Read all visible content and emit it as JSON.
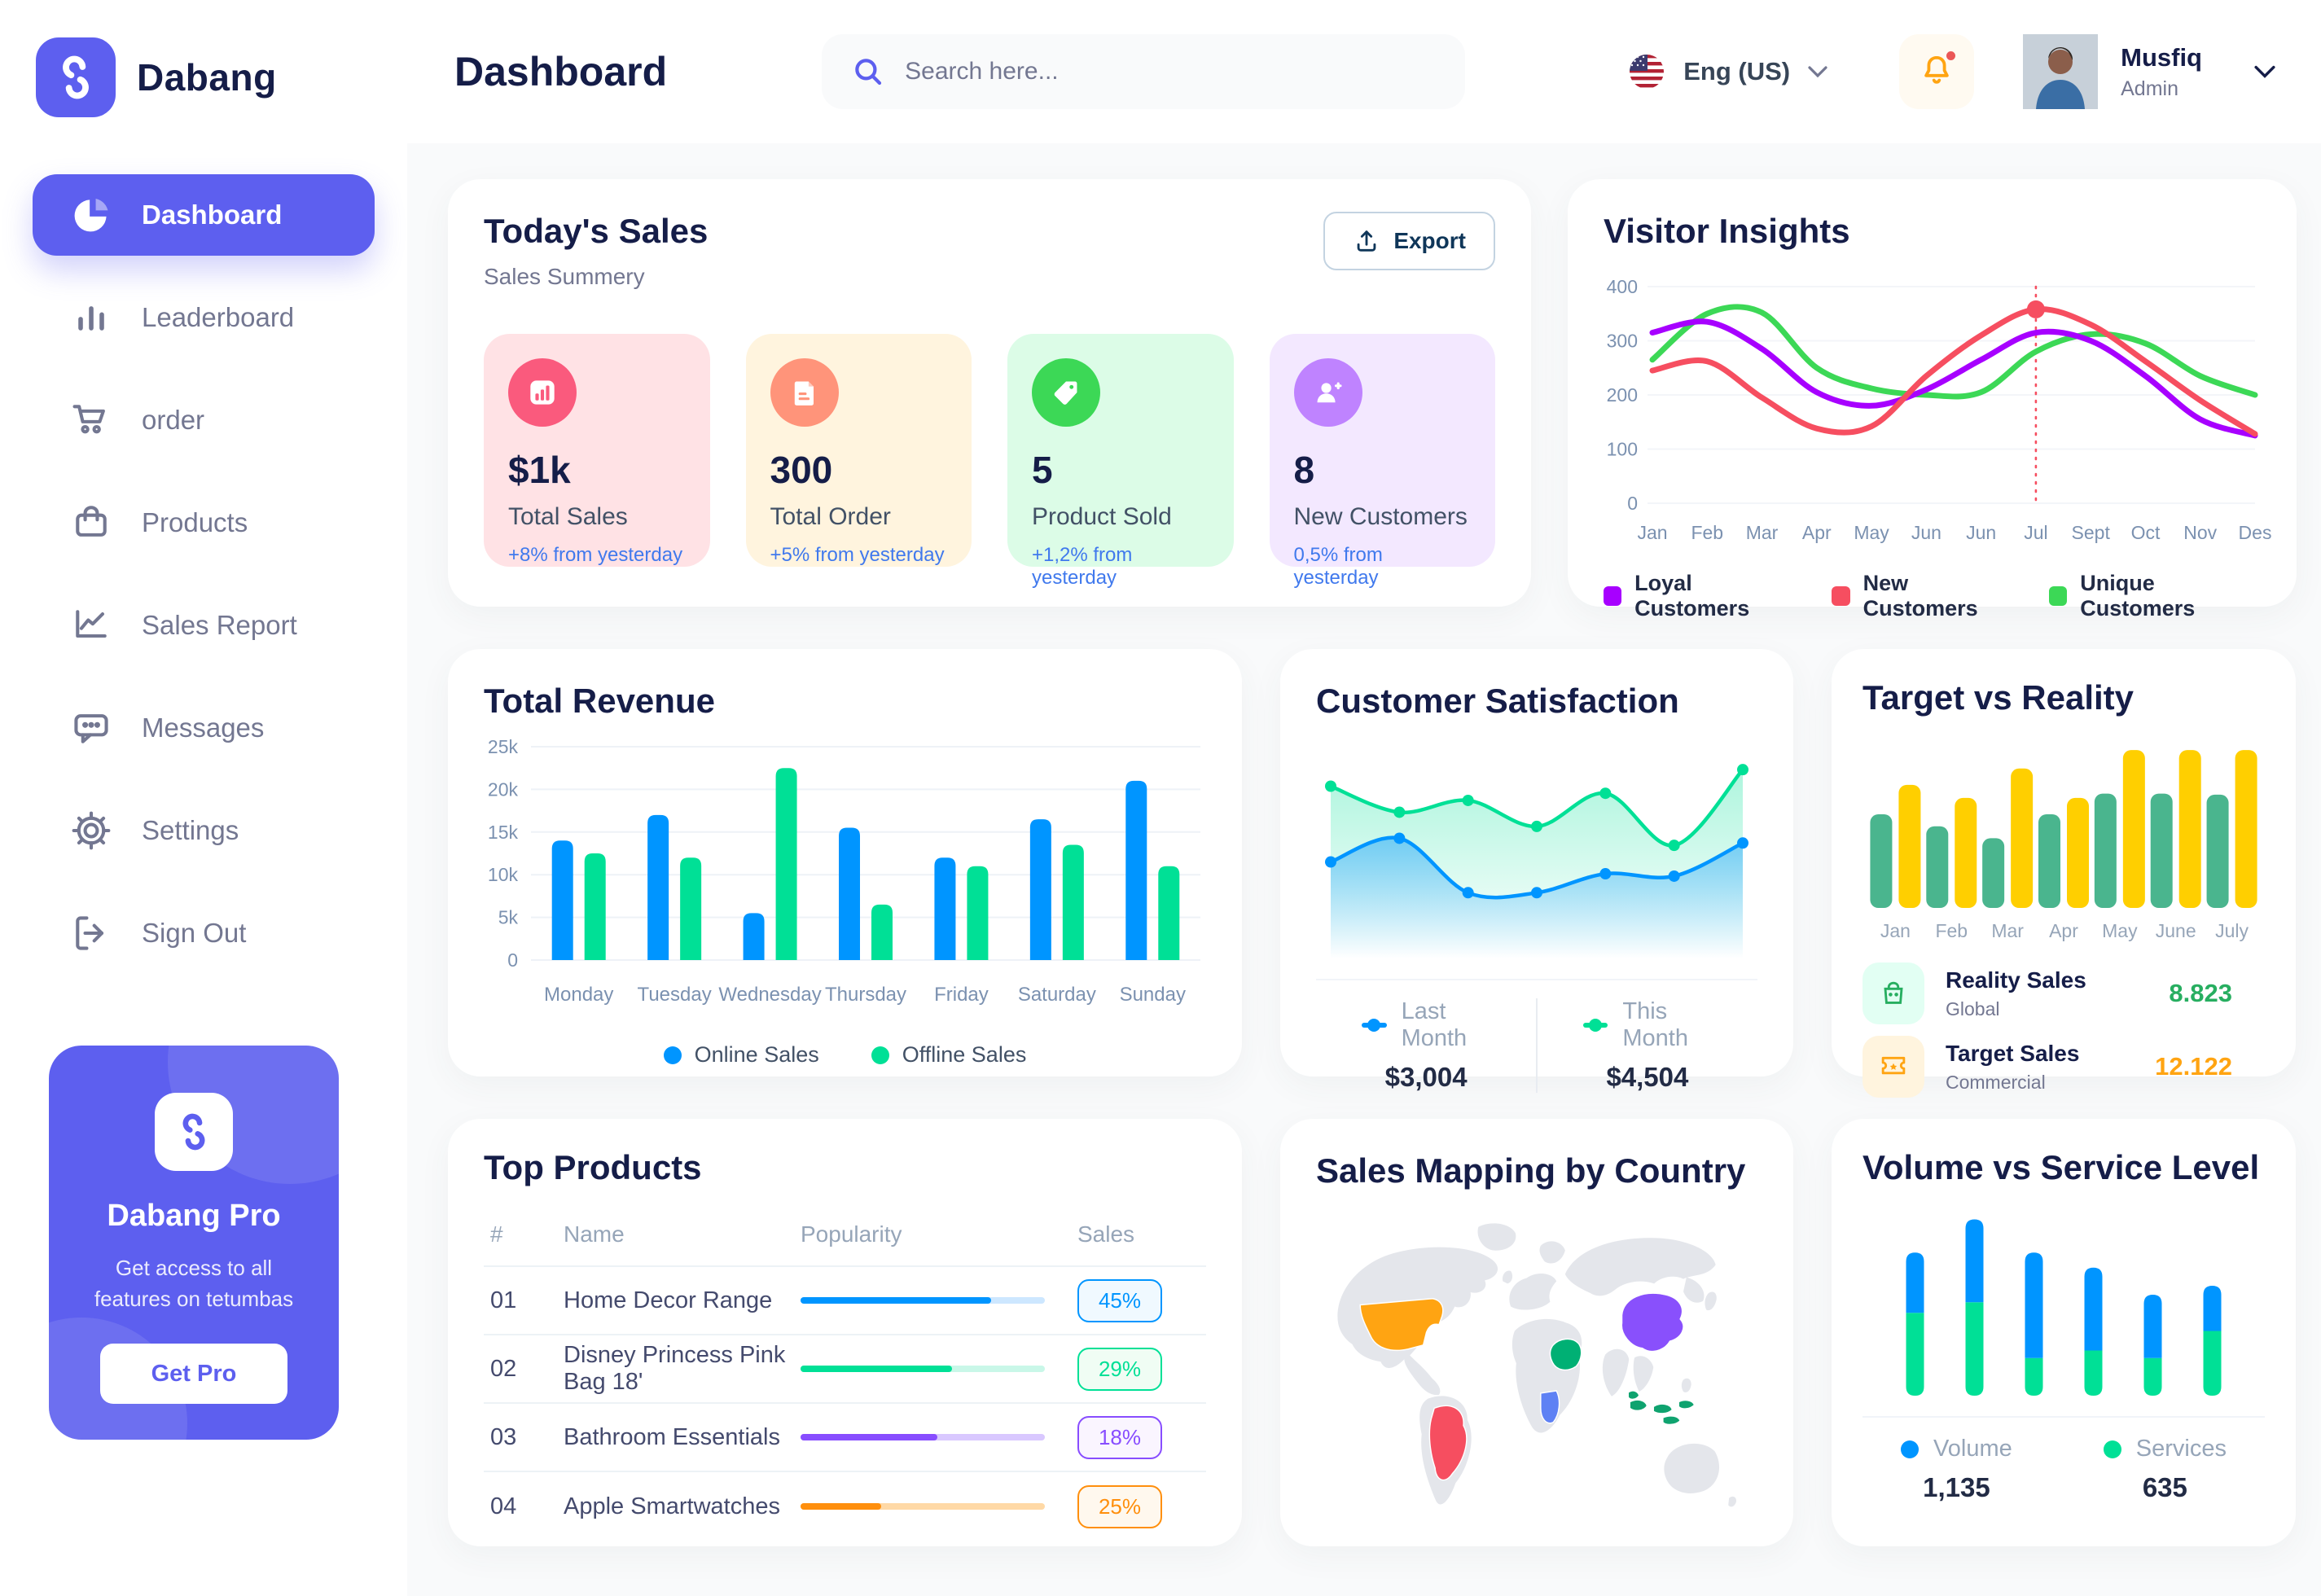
{
  "app": {
    "brand": "Dabang"
  },
  "header": {
    "page_title": "Dashboard",
    "search_placeholder": "Search here...",
    "language": "Eng (US)",
    "user_name": "Musfiq",
    "user_role": "Admin"
  },
  "sidebar": {
    "items": [
      {
        "label": "Dashboard"
      },
      {
        "label": "Leaderboard"
      },
      {
        "label": "order"
      },
      {
        "label": "Products"
      },
      {
        "label": "Sales Report"
      },
      {
        "label": "Messages"
      },
      {
        "label": "Settings"
      },
      {
        "label": "Sign Out"
      }
    ],
    "promo": {
      "title": "Dabang Pro",
      "description": "Get access to all features on tetumbas",
      "button_label": "Get Pro"
    }
  },
  "today_sales": {
    "title": "Today's Sales",
    "subtitle": "Sales Summery",
    "export_label": "Export",
    "cards": [
      {
        "value": "$1k",
        "label": "Total Sales",
        "delta": "+8% from yesterday",
        "bg": "#FFE2E5",
        "icon_bg": "#FA5A7D"
      },
      {
        "value": "300",
        "label": "Total Order",
        "delta": "+5% from yesterday",
        "bg": "#FFF4DE",
        "icon_bg": "#FF947A"
      },
      {
        "value": "5",
        "label": "Product Sold",
        "delta": "+1,2% from yesterday",
        "bg": "#DCFCE7",
        "icon_bg": "#3CD856"
      },
      {
        "value": "8",
        "label": "New Customers",
        "delta": "0,5% from yesterday",
        "bg": "#F3E8FF",
        "icon_bg": "#BF83FF"
      }
    ]
  },
  "visitor_insights": {
    "title": "Visitor Insights",
    "chart_data": {
      "type": "line",
      "x": [
        "Jan",
        "Feb",
        "Mar",
        "Apr",
        "May",
        "Jun",
        "Jun",
        "Jul",
        "Sept",
        "Oct",
        "Nov",
        "Des"
      ],
      "yticks": [
        0,
        100,
        200,
        300,
        400
      ],
      "ylim": [
        0,
        400
      ],
      "grid": true,
      "legend_position": "bottom",
      "series": [
        {
          "name": "Loyal Customers",
          "color": "#A700FF",
          "values": [
            315,
            335,
            285,
            205,
            180,
            210,
            265,
            315,
            300,
            235,
            155,
            125
          ]
        },
        {
          "name": "New Customers",
          "color": "#F64E60",
          "values": [
            245,
            262,
            195,
            138,
            142,
            235,
            310,
            358,
            330,
            262,
            190,
            128
          ]
        },
        {
          "name": "Unique Customers",
          "color": "#3CD856",
          "values": [
            265,
            350,
            352,
            250,
            212,
            200,
            205,
            280,
            312,
            295,
            235,
            200
          ]
        }
      ],
      "marker": {
        "x_index": 7,
        "series_index": 1,
        "value": 358
      }
    }
  },
  "total_revenue": {
    "title": "Total Revenue",
    "chart_data": {
      "type": "bar",
      "categories": [
        "Monday",
        "Tuesday",
        "Wednesday",
        "Thursday",
        "Friday",
        "Saturday",
        "Sunday"
      ],
      "ytick_labels": [
        "0",
        "5k",
        "10k",
        "15k",
        "20k",
        "25k"
      ],
      "ylim": [
        0,
        25000
      ],
      "grid": true,
      "legend_position": "bottom",
      "series": [
        {
          "name": "Online Sales",
          "color": "#0095FF",
          "values": [
            14000,
            17000,
            5500,
            15500,
            12000,
            16500,
            21000
          ]
        },
        {
          "name": "Offline Sales",
          "color": "#00E096",
          "values": [
            12500,
            12000,
            22500,
            6500,
            11000,
            13500,
            11000
          ]
        }
      ]
    }
  },
  "customer_satisfaction": {
    "title": "Customer Satisfaction",
    "chart_data": {
      "type": "area",
      "ylim": [
        0,
        7.5
      ],
      "series": [
        {
          "name": "Last Month",
          "color": "#0095FF",
          "total": "$3,004",
          "values": [
            2.7,
            3.7,
            1.4,
            1.4,
            2.2,
            2.1,
            3.5
          ]
        },
        {
          "name": "This Month",
          "color": "#00E096",
          "total": "$4,504",
          "values": [
            5.9,
            4.8,
            5.3,
            4.2,
            5.6,
            3.4,
            6.6
          ]
        }
      ]
    }
  },
  "target_vs_reality": {
    "title": "Target vs Reality",
    "chart_data": {
      "type": "bar",
      "categories": [
        "Jan",
        "Feb",
        "Mar",
        "Apr",
        "May",
        "June",
        "July"
      ],
      "ylim": [
        0,
        16
      ],
      "series": [
        {
          "name": "Reality Sales",
          "color": "#4AB58E",
          "values": [
            8.6,
            7.5,
            6.4,
            8.6,
            10.5,
            10.5,
            10.4
          ]
        },
        {
          "name": "Target Sales",
          "color": "#FFCF00",
          "values": [
            11.3,
            10.1,
            12.8,
            10.1,
            14.5,
            14.5,
            14.5
          ]
        }
      ]
    },
    "legend": [
      {
        "title": "Reality Sales",
        "subtitle": "Global",
        "value": "8.823",
        "value_color": "#27AE60",
        "icon_bg": "#E2FFF3",
        "icon_color": "#27AE60"
      },
      {
        "title": "Target Sales",
        "subtitle": "Commercial",
        "value": "12.122",
        "value_color": "#FFA412",
        "icon_bg": "#FFF4DE",
        "icon_color": "#FFA412"
      }
    ]
  },
  "top_products": {
    "title": "Top Products",
    "columns": {
      "num": "#",
      "name": "Name",
      "popularity": "Popularity",
      "sales": "Sales"
    },
    "rows": [
      {
        "num": "01",
        "name": "Home Decor Range",
        "popularity": 78,
        "sales": "45%",
        "color": "#0095FF",
        "track": "#CDE7FF",
        "badge_bg": "#F0F9FF"
      },
      {
        "num": "02",
        "name": "Disney Princess Pink Bag 18'",
        "popularity": 62,
        "sales": "29%",
        "color": "#00E096",
        "track": "#C9F7E8",
        "badge_bg": "#F0FDF4"
      },
      {
        "num": "03",
        "name": "Bathroom Essentials",
        "popularity": 56,
        "sales": "18%",
        "color": "#884DFF",
        "track": "#D9C8FF",
        "badge_bg": "#FAF5FF"
      },
      {
        "num": "04",
        "name": "Apple Smartwatches",
        "popularity": 33,
        "sales": "25%",
        "color": "#FF8F0D",
        "track": "#FFD9A6",
        "badge_bg": "#FFF8EE"
      }
    ]
  },
  "sales_map": {
    "title": "Sales Mapping by Country",
    "highlighted_countries": [
      {
        "name": "United States",
        "color": "#FFA412"
      },
      {
        "name": "Brazil",
        "color": "#F64E60"
      },
      {
        "name": "Saudi Arabia",
        "color": "#00B074"
      },
      {
        "name": "DR Congo",
        "color": "#5E81F4"
      },
      {
        "name": "China",
        "color": "#8950FC"
      },
      {
        "name": "Indonesia",
        "color": "#0FA36F"
      }
    ],
    "land_color": "#E4E6EB"
  },
  "volume_service": {
    "title": "Volume vs Service Level",
    "chart_data": {
      "type": "stacked-bar",
      "legend_position": "bottom",
      "series": [
        {
          "name": "Volume",
          "color": "#0095FF",
          "total": "1,135",
          "values": [
            40,
            55,
            70,
            55,
            42,
            30
          ]
        },
        {
          "name": "Services",
          "color": "#00E096",
          "total": "635",
          "values": [
            55,
            62,
            25,
            30,
            25,
            43
          ]
        }
      ]
    }
  }
}
